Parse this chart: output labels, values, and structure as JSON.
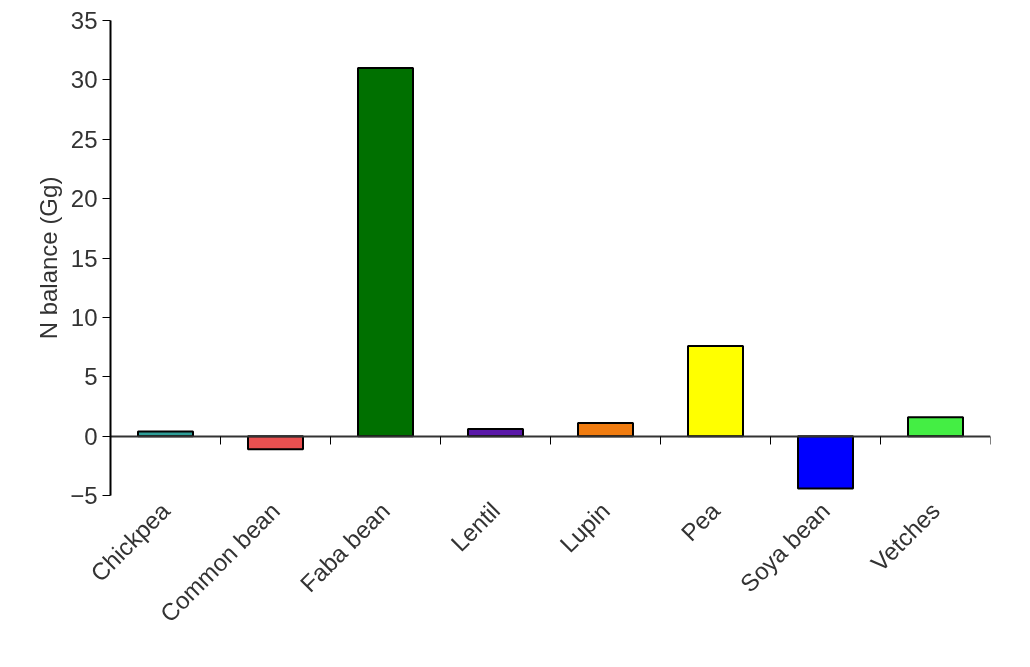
{
  "chart_data": {
    "type": "bar",
    "ylabel": "N balance (Gg)",
    "categories": [
      "Chickpea",
      "Common bean",
      "Faba bean",
      "Lentil",
      "Lupin",
      "Pea",
      "Soya bean",
      "Vetches"
    ],
    "values": [
      0.4,
      -1.1,
      31.0,
      0.6,
      1.1,
      7.6,
      -4.4,
      1.6
    ],
    "colors": [
      "#2e9e98",
      "#ea5050",
      "#007000",
      "#5a18a8",
      "#f07c10",
      "#ffff00",
      "#0000ff",
      "#44ee44"
    ],
    "ylim": [
      -5,
      35
    ],
    "yticks": [
      -5,
      0,
      5,
      10,
      15,
      20,
      25,
      30,
      35
    ],
    "grid": false
  }
}
